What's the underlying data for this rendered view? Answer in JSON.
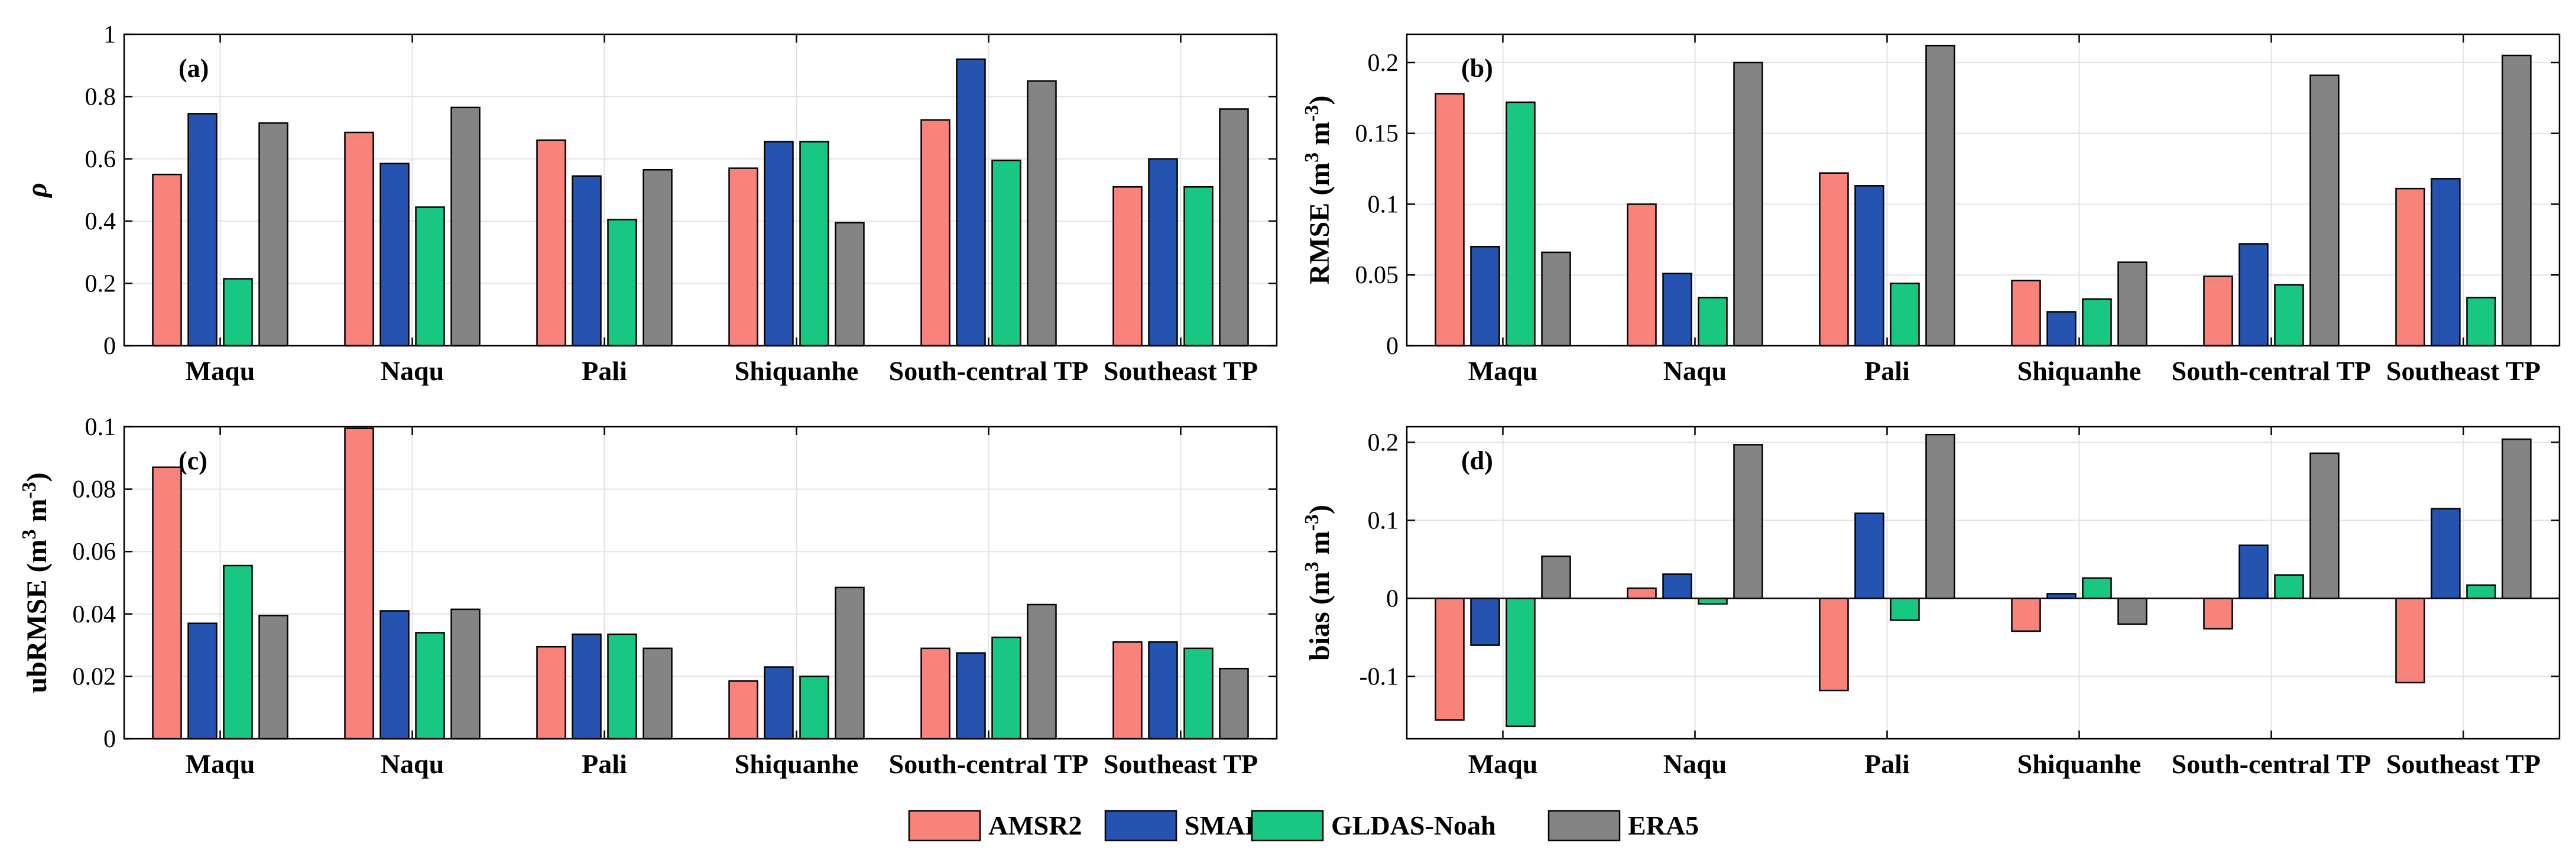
{
  "colors": {
    "AMSR2": "#f8837a",
    "SMAP": "#2554b0",
    "GLDAS-Noah": "#18c882",
    "ERA5": "#848484"
  },
  "legend": [
    "AMSR2",
    "SMAP",
    "GLDAS-Noah",
    "ERA5"
  ],
  "chart_data": [
    {
      "id": "a",
      "type": "bar",
      "panel_label": "(a)",
      "ylabel": "ρ",
      "ylabel_sup": "",
      "ylabel_tail": "",
      "ylim": [
        0,
        1
      ],
      "yticks": [
        0,
        0.2,
        0.4,
        0.6,
        0.8,
        1
      ],
      "ytick_labels": [
        "0",
        "0.2",
        "0.4",
        "0.6",
        "0.8",
        "1"
      ],
      "categories": [
        "Maqu",
        "Naqu",
        "Pali",
        "Shiquanhe",
        "South-central TP",
        "Southeast TP"
      ],
      "series": [
        {
          "name": "AMSR2",
          "values": [
            0.55,
            0.685,
            0.66,
            0.57,
            0.725,
            0.51
          ]
        },
        {
          "name": "SMAP",
          "values": [
            0.745,
            0.585,
            0.545,
            0.655,
            0.92,
            0.6
          ]
        },
        {
          "name": "GLDAS-Noah",
          "values": [
            0.215,
            0.445,
            0.405,
            0.655,
            0.595,
            0.51
          ]
        },
        {
          "name": "ERA5",
          "values": [
            0.715,
            0.765,
            0.565,
            0.395,
            0.85,
            0.76
          ]
        }
      ]
    },
    {
      "id": "b",
      "type": "bar",
      "panel_label": "(b)",
      "ylabel": "RMSE (m",
      "ylabel_sup": "3",
      "ylabel_tail": " m",
      "ylabel_sup2": "-3",
      "ylabel_end": ")",
      "ylim": [
        0,
        0.22
      ],
      "yticks": [
        0,
        0.05,
        0.1,
        0.15,
        0.2
      ],
      "ytick_labels": [
        "0",
        "0.05",
        "0.1",
        "0.15",
        "0.2"
      ],
      "categories": [
        "Maqu",
        "Naqu",
        "Pali",
        "Shiquanhe",
        "South-central TP",
        "Southeast TP"
      ],
      "series": [
        {
          "name": "AMSR2",
          "values": [
            0.178,
            0.1,
            0.122,
            0.046,
            0.049,
            0.111
          ]
        },
        {
          "name": "SMAP",
          "values": [
            0.07,
            0.051,
            0.113,
            0.024,
            0.072,
            0.118
          ]
        },
        {
          "name": "GLDAS-Noah",
          "values": [
            0.172,
            0.034,
            0.044,
            0.033,
            0.043,
            0.034
          ]
        },
        {
          "name": "ERA5",
          "values": [
            0.066,
            0.2,
            0.212,
            0.059,
            0.191,
            0.205
          ]
        }
      ]
    },
    {
      "id": "c",
      "type": "bar",
      "panel_label": "(c)",
      "ylabel": "ubRMSE (m",
      "ylabel_sup": "3",
      "ylabel_tail": " m",
      "ylabel_sup2": "-3",
      "ylabel_end": ")",
      "ylim": [
        0,
        0.1
      ],
      "yticks": [
        0,
        0.02,
        0.04,
        0.06,
        0.08,
        0.1
      ],
      "ytick_labels": [
        "0",
        "0.02",
        "0.04",
        "0.06",
        "0.08",
        "0.1"
      ],
      "categories": [
        "Maqu",
        "Naqu",
        "Pali",
        "Shiquanhe",
        "South-central TP",
        "Southeast TP"
      ],
      "series": [
        {
          "name": "AMSR2",
          "values": [
            0.087,
            0.0995,
            0.0295,
            0.0185,
            0.029,
            0.031
          ]
        },
        {
          "name": "SMAP",
          "values": [
            0.037,
            0.041,
            0.0335,
            0.023,
            0.0275,
            0.031
          ]
        },
        {
          "name": "GLDAS-Noah",
          "values": [
            0.0555,
            0.034,
            0.0335,
            0.02,
            0.0325,
            0.029
          ]
        },
        {
          "name": "ERA5",
          "values": [
            0.0395,
            0.0415,
            0.029,
            0.0485,
            0.043,
            0.0225
          ]
        }
      ]
    },
    {
      "id": "d",
      "type": "bar",
      "panel_label": "(d)",
      "ylabel": "bias (m",
      "ylabel_sup": "3",
      "ylabel_tail": " m",
      "ylabel_sup2": "-3",
      "ylabel_end": ")",
      "ylim": [
        -0.18,
        0.22
      ],
      "yticks": [
        -0.1,
        0,
        0.1,
        0.2
      ],
      "ytick_labels": [
        "-0.1",
        "0",
        "0.1",
        "0.2"
      ],
      "categories": [
        "Maqu",
        "Naqu",
        "Pali",
        "Shiquanhe",
        "South-central TP",
        "Southeast TP"
      ],
      "series": [
        {
          "name": "AMSR2",
          "values": [
            -0.156,
            0.013,
            -0.118,
            -0.042,
            -0.039,
            -0.108
          ]
        },
        {
          "name": "SMAP",
          "values": [
            -0.06,
            0.031,
            0.109,
            0.006,
            0.068,
            0.115
          ]
        },
        {
          "name": "GLDAS-Noah",
          "values": [
            -0.164,
            -0.007,
            -0.028,
            0.026,
            0.03,
            0.017
          ]
        },
        {
          "name": "ERA5",
          "values": [
            0.054,
            0.197,
            0.21,
            -0.033,
            0.186,
            0.204
          ]
        }
      ]
    }
  ]
}
